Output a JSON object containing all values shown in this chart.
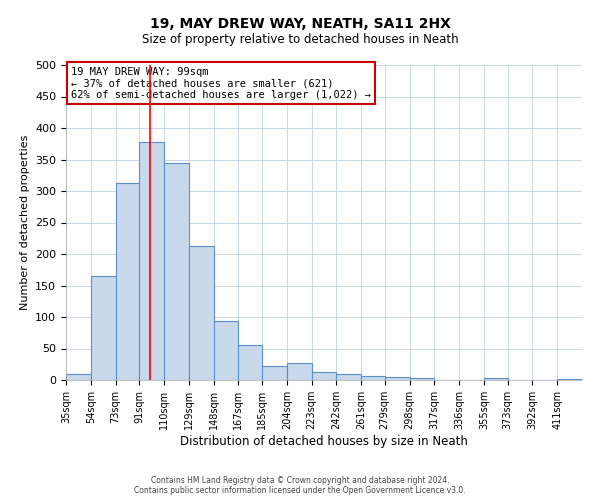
{
  "title": "19, MAY DREW WAY, NEATH, SA11 2HX",
  "subtitle": "Size of property relative to detached houses in Neath",
  "xlabel": "Distribution of detached houses by size in Neath",
  "ylabel": "Number of detached properties",
  "bar_labels": [
    "35sqm",
    "54sqm",
    "73sqm",
    "91sqm",
    "110sqm",
    "129sqm",
    "148sqm",
    "167sqm",
    "185sqm",
    "204sqm",
    "223sqm",
    "242sqm",
    "261sqm",
    "279sqm",
    "298sqm",
    "317sqm",
    "336sqm",
    "355sqm",
    "373sqm",
    "392sqm",
    "411sqm"
  ],
  "bar_values": [
    10,
    165,
    313,
    378,
    345,
    213,
    93,
    56,
    23,
    27,
    13,
    10,
    7,
    5,
    3,
    0,
    0,
    3,
    0,
    0,
    2
  ],
  "bar_color": "#c9d9ec",
  "bar_edge_color": "#5b8fc9",
  "ylim": [
    0,
    500
  ],
  "yticks": [
    0,
    50,
    100,
    150,
    200,
    250,
    300,
    350,
    400,
    450,
    500
  ],
  "red_line_x": 99,
  "bin_edges": [
    35,
    54,
    73,
    91,
    110,
    129,
    148,
    167,
    185,
    204,
    223,
    242,
    261,
    279,
    298,
    317,
    336,
    355,
    373,
    392,
    411,
    430
  ],
  "annotation_line1": "19 MAY DREW WAY: 99sqm",
  "annotation_line2": "← 37% of detached houses are smaller (621)",
  "annotation_line3": "62% of semi-detached houses are larger (1,022) →",
  "annotation_box_color": "#ffffff",
  "annotation_box_edge_color": "#cc0000",
  "footer_line1": "Contains HM Land Registry data © Crown copyright and database right 2024.",
  "footer_line2": "Contains public sector information licensed under the Open Government Licence v3.0.",
  "background_color": "#ffffff",
  "grid_color": "#c8d8e8",
  "title_fontsize": 10,
  "subtitle_fontsize": 8.5,
  "ylabel_fontsize": 8,
  "xlabel_fontsize": 8.5,
  "ytick_fontsize": 8,
  "xtick_fontsize": 7,
  "annotation_fontsize": 7.5,
  "footer_fontsize": 5.5
}
